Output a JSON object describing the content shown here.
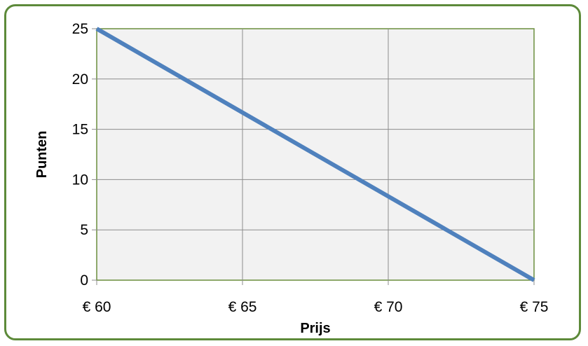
{
  "chart_data": {
    "type": "line",
    "xlabel": "Prijs",
    "ylabel": "Punten",
    "x_ticks": [
      "€ 60",
      "€ 65",
      "€ 70",
      "€ 75"
    ],
    "y_ticks": [
      "0",
      "5",
      "10",
      "15",
      "20",
      "25"
    ],
    "xlim": [
      60,
      75
    ],
    "ylim": [
      0,
      25
    ],
    "grid": true,
    "series": [
      {
        "x": [
          60,
          75
        ],
        "y": [
          25,
          0
        ],
        "color": "#4f81bd"
      }
    ]
  },
  "colors": {
    "frame_border": "#5d8a3a",
    "plot_border": "#6b8e3d",
    "plot_background": "#f2f2f2",
    "gridline": "#8c8c8c",
    "line": "#4f81bd"
  }
}
